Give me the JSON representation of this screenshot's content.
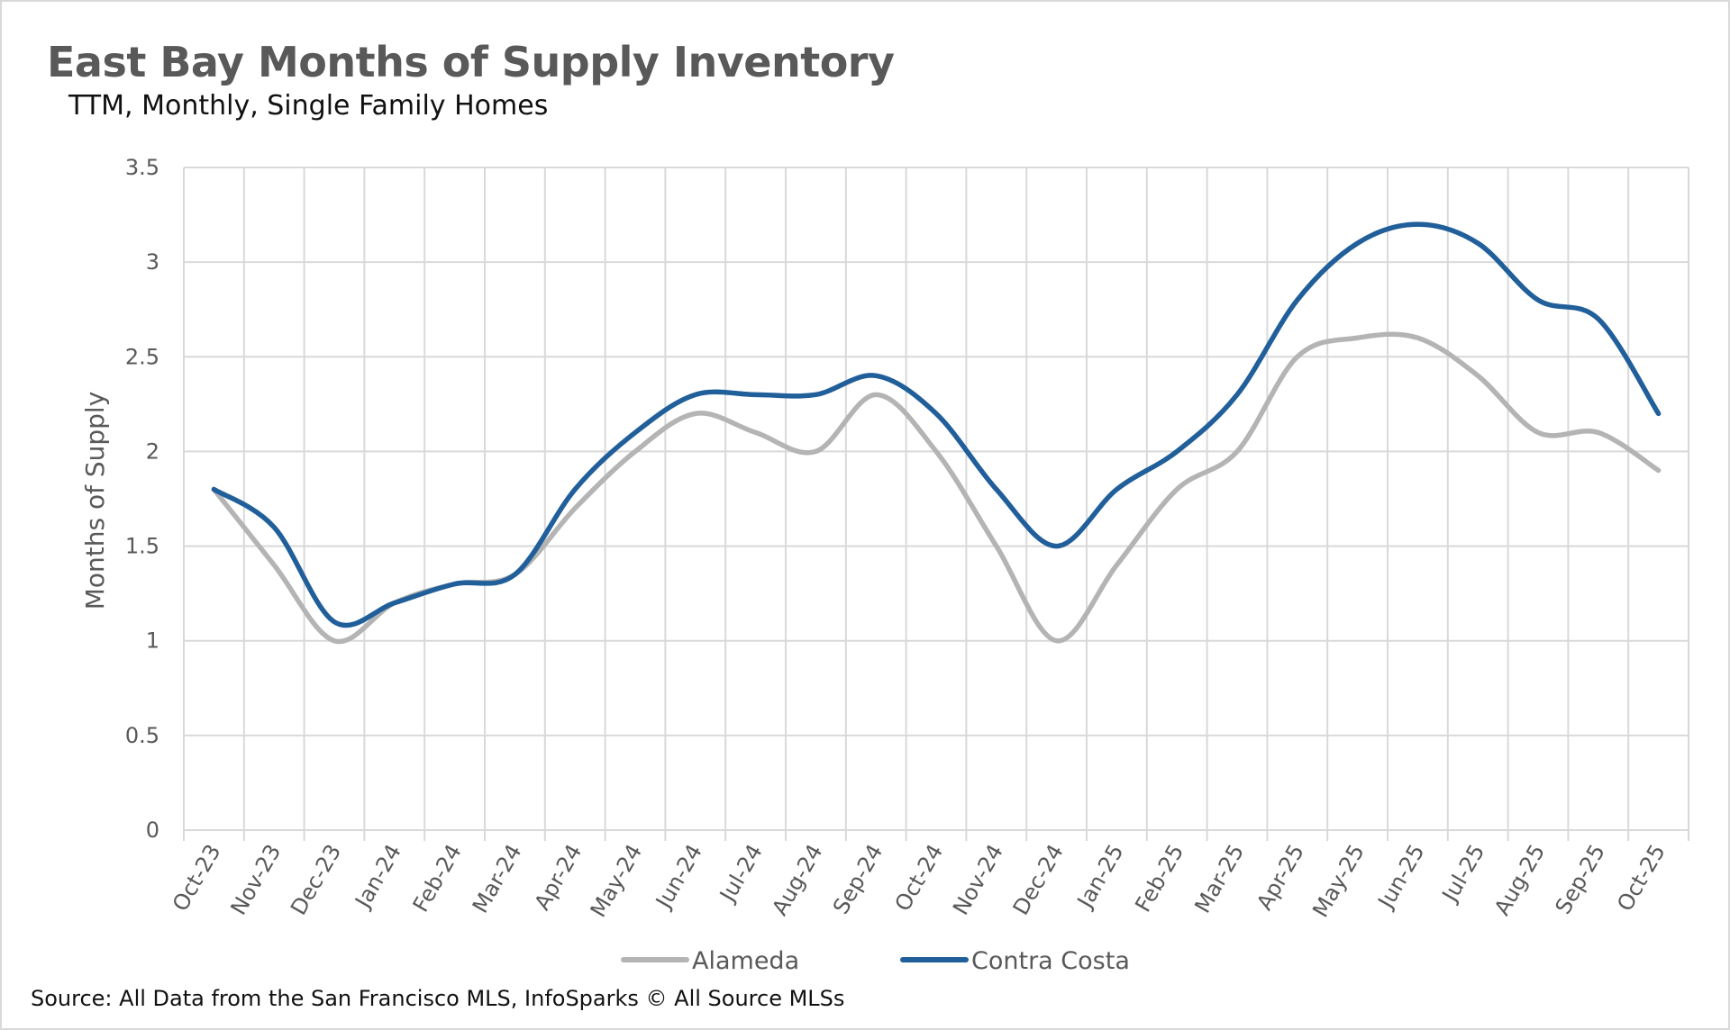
{
  "chart_data": {
    "type": "line",
    "title": "East Bay Months of Supply Inventory",
    "subtitle": "TTM, Monthly, Single Family Homes",
    "xlabel": "",
    "ylabel": "Months of Supply",
    "ylim": [
      0,
      3.5
    ],
    "yticks": [
      "0",
      "0.5",
      "1",
      "1.5",
      "2",
      "2.5",
      "3",
      "3.5"
    ],
    "grid": true,
    "legend_position": "bottom",
    "categories": [
      "Oct-23",
      "Nov-23",
      "Dec-23",
      "Jan-24",
      "Feb-24",
      "Mar-24",
      "Apr-24",
      "May-24",
      "Jun-24",
      "Jul-24",
      "Aug-24",
      "Sep-24",
      "Oct-24",
      "Nov-24",
      "Dec-24",
      "Jan-25",
      "Feb-25",
      "Mar-25",
      "Apr-25",
      "May-25",
      "Jun-25",
      "Jul-25",
      "Aug-25",
      "Sep-25",
      "Oct-25"
    ],
    "series": [
      {
        "name": "Alameda",
        "color": "#b4b4b4",
        "values": [
          1.8,
          1.4,
          1.0,
          1.2,
          1.3,
          1.35,
          1.7,
          2.0,
          2.2,
          2.1,
          2.0,
          2.3,
          2.0,
          1.5,
          1.0,
          1.4,
          1.8,
          2.0,
          2.5,
          2.6,
          2.6,
          2.4,
          2.1,
          2.1,
          1.9
        ]
      },
      {
        "name": "Contra Costa",
        "color": "#215f9a",
        "values": [
          1.8,
          1.6,
          1.1,
          1.2,
          1.3,
          1.35,
          1.8,
          2.1,
          2.3,
          2.3,
          2.3,
          2.4,
          2.2,
          1.8,
          1.5,
          1.8,
          2.0,
          2.3,
          2.8,
          3.1,
          3.2,
          3.1,
          2.8,
          2.7,
          2.2
        ]
      }
    ],
    "source": "Source: All Data from the San Francisco MLS, InfoSparks © All Source MLSs"
  }
}
